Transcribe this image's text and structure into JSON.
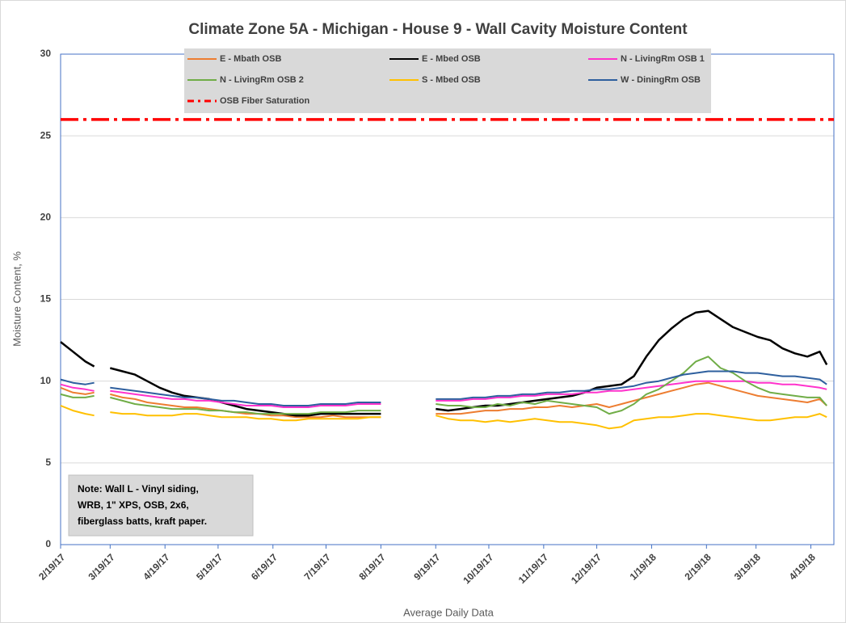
{
  "chart_data": {
    "type": "line",
    "title": "Climate Zone 5A - Michigan - House 9 - Wall Cavity Moisture Content",
    "x_label": "Average Daily Data",
    "y_label": "Moisture Content, %",
    "x": [
      "2/19/17",
      "2/26/17",
      "3/5/17",
      "3/10/17",
      "3/14/17",
      "3/19/17",
      "3/26/17",
      "4/2/17",
      "4/9/17",
      "4/16/17",
      "4/23/17",
      "4/30/17",
      "5/7/17",
      "5/14/17",
      "5/21/17",
      "5/28/17",
      "6/4/17",
      "6/11/17",
      "6/18/17",
      "6/25/17",
      "7/2/17",
      "7/9/17",
      "7/16/17",
      "7/23/17",
      "7/30/17",
      "8/6/17",
      "8/13/17",
      "8/19/17",
      "9/1/17",
      "9/19/17",
      "9/26/17",
      "10/3/17",
      "10/10/17",
      "10/17/17",
      "10/24/17",
      "10/31/17",
      "11/7/17",
      "11/14/17",
      "11/21/17",
      "11/28/17",
      "12/5/17",
      "12/12/17",
      "12/19/17",
      "12/26/17",
      "1/2/18",
      "1/9/18",
      "1/16/18",
      "1/23/18",
      "1/30/18",
      "2/6/18",
      "2/13/18",
      "2/20/18",
      "2/27/18",
      "3/6/18",
      "3/13/18",
      "3/20/18",
      "3/27/18",
      "4/3/18",
      "4/10/18",
      "4/17/18",
      "4/24/18",
      "4/28/18"
    ],
    "series": [
      {
        "name": "E - Mbath OSB",
        "color": "#ed7d31",
        "values": [
          9.6,
          9.3,
          9.2,
          9.3,
          null,
          9.2,
          9.0,
          8.9,
          8.7,
          8.6,
          8.5,
          8.4,
          8.4,
          8.3,
          8.2,
          8.1,
          8.0,
          8.0,
          7.9,
          7.9,
          7.8,
          7.8,
          7.8,
          7.9,
          7.8,
          7.8,
          7.8,
          7.8,
          null,
          8.0,
          8.0,
          8.0,
          8.1,
          8.2,
          8.2,
          8.3,
          8.3,
          8.4,
          8.4,
          8.5,
          8.4,
          8.5,
          8.6,
          8.4,
          8.6,
          8.8,
          9.0,
          9.2,
          9.4,
          9.6,
          9.8,
          9.9,
          9.7,
          9.5,
          9.3,
          9.1,
          9.0,
          8.9,
          8.8,
          8.7,
          8.9,
          8.5
        ]
      },
      {
        "name": "E - Mbed OSB",
        "color": "#000000",
        "values": [
          12.4,
          11.8,
          11.2,
          10.9,
          null,
          10.8,
          10.6,
          10.4,
          10.0,
          9.6,
          9.3,
          9.1,
          9.0,
          8.9,
          8.7,
          8.5,
          8.3,
          8.2,
          8.1,
          8.0,
          7.9,
          7.9,
          8.0,
          8.0,
          8.0,
          8.0,
          8.0,
          8.0,
          null,
          8.3,
          8.2,
          8.3,
          8.4,
          8.5,
          8.5,
          8.6,
          8.7,
          8.8,
          8.9,
          9.0,
          9.1,
          9.3,
          9.6,
          9.7,
          9.8,
          10.3,
          11.5,
          12.5,
          13.2,
          13.8,
          14.2,
          14.3,
          13.8,
          13.3,
          13.0,
          12.7,
          12.5,
          12.0,
          11.7,
          11.5,
          11.8,
          11.0
        ]
      },
      {
        "name": "N - LivingRm OSB 1",
        "color": "#ff33cc",
        "values": [
          9.8,
          9.6,
          9.5,
          9.4,
          null,
          9.4,
          9.3,
          9.2,
          9.1,
          9.0,
          8.9,
          8.9,
          8.8,
          8.8,
          8.7,
          8.6,
          8.5,
          8.5,
          8.5,
          8.4,
          8.4,
          8.4,
          8.5,
          8.5,
          8.5,
          8.6,
          8.6,
          8.6,
          null,
          8.8,
          8.8,
          8.8,
          8.9,
          8.9,
          9.0,
          9.0,
          9.1,
          9.1,
          9.2,
          9.2,
          9.2,
          9.3,
          9.3,
          9.4,
          9.4,
          9.5,
          9.6,
          9.7,
          9.8,
          9.9,
          10.0,
          10.0,
          10.0,
          10.0,
          10.0,
          9.9,
          9.9,
          9.8,
          9.8,
          9.7,
          9.6,
          9.5
        ]
      },
      {
        "name": "N - LivingRm OSB 2",
        "color": "#70ad47",
        "values": [
          9.2,
          9.0,
          9.0,
          9.1,
          null,
          9.0,
          8.8,
          8.6,
          8.5,
          8.4,
          8.3,
          8.3,
          8.3,
          8.2,
          8.2,
          8.1,
          8.1,
          8.0,
          8.0,
          8.0,
          8.0,
          8.0,
          8.1,
          8.1,
          8.1,
          8.2,
          8.2,
          8.2,
          null,
          8.6,
          8.5,
          8.5,
          8.4,
          8.4,
          8.6,
          8.5,
          8.7,
          8.6,
          8.8,
          8.7,
          8.6,
          8.5,
          8.4,
          8.0,
          8.2,
          8.6,
          9.2,
          9.5,
          10.0,
          10.5,
          11.2,
          11.5,
          10.8,
          10.5,
          10.0,
          9.6,
          9.3,
          9.2,
          9.1,
          9.0,
          9.0,
          8.5
        ]
      },
      {
        "name": "S - Mbed OSB",
        "color": "#ffc000",
        "values": [
          8.5,
          8.2,
          8.0,
          7.9,
          null,
          8.1,
          8.0,
          8.0,
          7.9,
          7.9,
          7.9,
          8.0,
          8.0,
          7.9,
          7.8,
          7.8,
          7.8,
          7.7,
          7.7,
          7.6,
          7.6,
          7.7,
          7.7,
          7.7,
          7.7,
          7.7,
          7.8,
          7.8,
          null,
          7.9,
          7.7,
          7.6,
          7.6,
          7.5,
          7.6,
          7.5,
          7.6,
          7.7,
          7.6,
          7.5,
          7.5,
          7.4,
          7.3,
          7.1,
          7.2,
          7.6,
          7.7,
          7.8,
          7.8,
          7.9,
          8.0,
          8.0,
          7.9,
          7.8,
          7.7,
          7.6,
          7.6,
          7.7,
          7.8,
          7.8,
          8.0,
          7.8
        ]
      },
      {
        "name": "W - DiningRm OSB",
        "color": "#2e5f9e",
        "values": [
          10.1,
          9.9,
          9.8,
          9.9,
          null,
          9.6,
          9.5,
          9.4,
          9.3,
          9.2,
          9.1,
          9.0,
          9.0,
          8.9,
          8.8,
          8.8,
          8.7,
          8.6,
          8.6,
          8.5,
          8.5,
          8.5,
          8.6,
          8.6,
          8.6,
          8.7,
          8.7,
          8.7,
          null,
          8.9,
          8.9,
          8.9,
          9.0,
          9.0,
          9.1,
          9.1,
          9.2,
          9.2,
          9.3,
          9.3,
          9.4,
          9.4,
          9.5,
          9.5,
          9.6,
          9.7,
          9.9,
          10.0,
          10.2,
          10.4,
          10.5,
          10.6,
          10.6,
          10.6,
          10.5,
          10.5,
          10.4,
          10.3,
          10.3,
          10.2,
          10.1,
          9.8
        ]
      }
    ],
    "reference_lines": [
      {
        "name": "OSB Fiber Saturation",
        "color": "#ff0000",
        "value": 26
      }
    ],
    "xlim": [
      "2/19/17",
      "5/2/18"
    ],
    "xticks": [
      "2/19/17",
      "3/19/17",
      "4/19/17",
      "5/19/17",
      "6/19/17",
      "7/19/17",
      "8/19/17",
      "9/19/17",
      "10/19/17",
      "11/19/17",
      "12/19/17",
      "1/19/18",
      "2/19/18",
      "3/19/18",
      "4/19/18"
    ],
    "ylim": [
      0,
      30
    ],
    "yticks": [
      0,
      5,
      10,
      15,
      20,
      25,
      30
    ],
    "grid": true,
    "legend": "top",
    "note": [
      "Note: Wall L - Vinyl siding,",
      "WRB, 1\" XPS, OSB, 2x6,",
      "fiberglass batts, kraft paper."
    ]
  }
}
